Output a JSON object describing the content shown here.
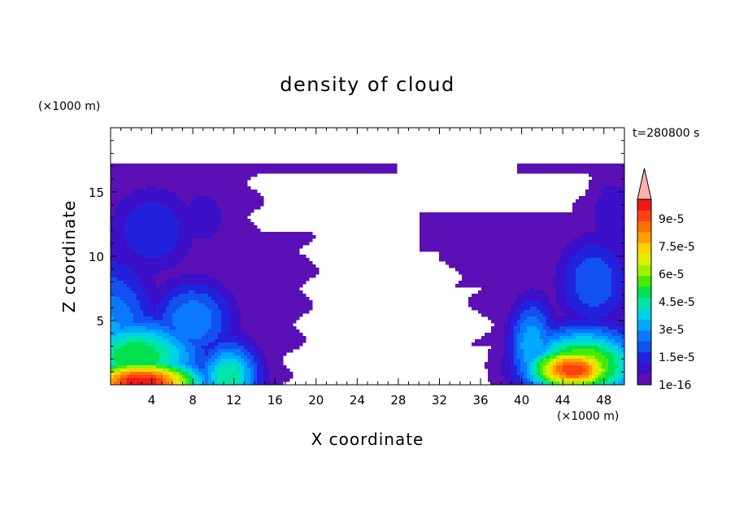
{
  "chart_data": {
    "type": "heatmap",
    "title": "density of cloud",
    "xlabel": "X coordinate",
    "ylabel": "Z coordinate",
    "x_unit": "(×1000 m)",
    "y_unit": "(×1000 m)",
    "time_label": "t=280800 s",
    "xlim": [
      0,
      50
    ],
    "ylim": [
      0,
      20
    ],
    "x_ticks": [
      4,
      8,
      12,
      16,
      20,
      24,
      28,
      32,
      36,
      40,
      44,
      48
    ],
    "y_ticks": [
      5,
      10,
      15
    ],
    "colorbar": {
      "levels": [
        "1e-16",
        "1.5e-5",
        "3e-5",
        "4.5e-5",
        "6e-5",
        "7.5e-5",
        "9e-5"
      ],
      "colors": [
        "#5a10b4",
        "#3b10c8",
        "#2222dd",
        "#1350f0",
        "#0a78ff",
        "#00a8ff",
        "#00d2e6",
        "#00e6a8",
        "#00e050",
        "#46ec00",
        "#a0f000",
        "#dcf000",
        "#ffd200",
        "#ffa000",
        "#ff7000",
        "#ff4010",
        "#f01818",
        "#ffb0b0"
      ],
      "extend": "max"
    },
    "regions": [
      {
        "x": [
          0,
          28
        ],
        "z": [
          0,
          17
        ],
        "note": "left cloud mass"
      },
      {
        "x": [
          30,
          50
        ],
        "z": [
          0,
          17
        ],
        "note": "right cloud mass"
      }
    ]
  }
}
